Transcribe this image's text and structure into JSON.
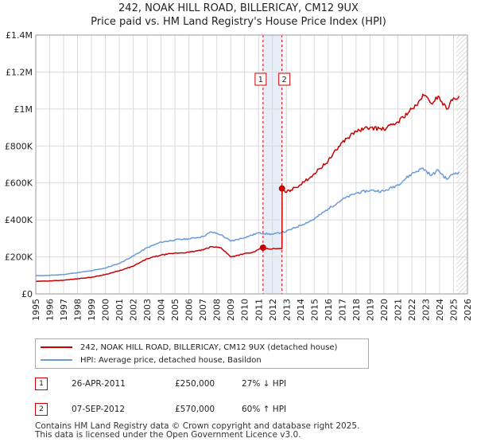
{
  "chart_data": {
    "type": "line",
    "title": "242, NOAK HILL ROAD, BILLERICAY, CM12 9UX",
    "subtitle": "Price paid vs. HM Land Registry's House Price Index (HPI)",
    "xlim": [
      1995,
      2026
    ],
    "ylim": [
      0,
      1400000
    ],
    "x_ticks": [
      1995,
      1996,
      1997,
      1998,
      1999,
      2000,
      2001,
      2002,
      2003,
      2004,
      2005,
      2006,
      2007,
      2008,
      2009,
      2010,
      2011,
      2012,
      2013,
      2014,
      2015,
      2016,
      2017,
      2018,
      2019,
      2020,
      2021,
      2022,
      2023,
      2024,
      2025,
      2026
    ],
    "y_ticks": [
      {
        "value": 0,
        "label": "£0"
      },
      {
        "value": 200000,
        "label": "£200K"
      },
      {
        "value": 400000,
        "label": "£400K"
      },
      {
        "value": 600000,
        "label": "£600K"
      },
      {
        "value": 800000,
        "label": "£800K"
      },
      {
        "value": 1000000,
        "label": "£1M"
      },
      {
        "value": 1200000,
        "label": "£1.2M"
      },
      {
        "value": 1400000,
        "label": "£1.4M"
      }
    ],
    "series": [
      {
        "name": "242, NOAK HILL ROAD, BILLERICAY, CM12 9UX (detached house)",
        "color": "#cc0000",
        "x": [
          1995,
          1996,
          1997,
          1998,
          1999,
          2000,
          2001,
          2002,
          2003,
          2004,
          2005,
          2006,
          2007,
          2007.6,
          2008.3,
          2009,
          2010,
          2010.5,
          2011.32,
          2011.7,
          2012.6,
          2012.68,
          2012.69,
          2013,
          2014,
          2015,
          2016,
          2017,
          2018,
          2019,
          2020,
          2021,
          2022,
          2022.4,
          2022.8,
          2023.4,
          2023.9,
          2024.5,
          2025,
          2025.4
        ],
        "y": [
          68000,
          70000,
          74000,
          82000,
          90000,
          105000,
          125000,
          150000,
          190000,
          210000,
          220000,
          225000,
          238000,
          255000,
          250000,
          200000,
          218000,
          222000,
          250000,
          243000,
          245000,
          245000,
          570000,
          550000,
          590000,
          650000,
          720000,
          820000,
          880000,
          900000,
          890000,
          930000,
          1000000,
          1020000,
          1080000,
          1030000,
          1070000,
          1000000,
          1060000,
          1070000
        ]
      },
      {
        "name": "HPI: Average price, detached house, Basildon",
        "color": "#6a9bd8",
        "x": [
          1995,
          1996,
          1997,
          1998,
          1999,
          2000,
          2001,
          2002,
          2003,
          2004,
          2005,
          2006,
          2007,
          2007.6,
          2008.3,
          2009,
          2010,
          2011,
          2012,
          2013,
          2014,
          2015,
          2016,
          2017,
          2018,
          2019,
          2020,
          2021,
          2022,
          2022.8,
          2023.4,
          2023.9,
          2024.5,
          2025,
          2025.4
        ],
        "y": [
          98000,
          100000,
          105000,
          115000,
          125000,
          140000,
          165000,
          205000,
          250000,
          280000,
          292000,
          298000,
          310000,
          335000,
          320000,
          285000,
          305000,
          330000,
          322000,
          338000,
          370000,
          405000,
          460000,
          510000,
          545000,
          560000,
          555000,
          590000,
          650000,
          680000,
          640000,
          670000,
          620000,
          650000,
          660000
        ]
      }
    ],
    "sales": [
      {
        "marker": "1",
        "year": 2011.32,
        "value": 250000,
        "date": "26-APR-2011",
        "price": "£250,000",
        "hpi": "27% ↓ HPI"
      },
      {
        "marker": "2",
        "year": 2012.68,
        "value": 570000,
        "date": "07-SEP-2012",
        "price": "£570,000",
        "hpi": "60% ↑ HPI"
      }
    ],
    "highlight_range": [
      2011.32,
      2012.68
    ],
    "hatch_from": 2025.2
  },
  "legend": {
    "property_label": "242, NOAK HILL ROAD, BILLERICAY, CM12 9UX (detached house)",
    "hpi_label": "HPI: Average price, detached house, Basildon"
  },
  "footer": {
    "line1": "Contains HM Land Registry data © Crown copyright and database right 2025.",
    "line2": "This data is licensed under the Open Government Licence v3.0."
  }
}
